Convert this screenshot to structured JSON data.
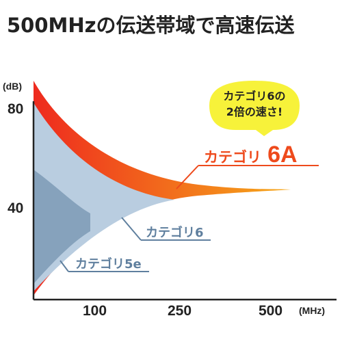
{
  "title": "500MHzの伝送帯域で高速伝送",
  "chart_data": {
    "type": "area",
    "title": "500MHzの伝送帯域で高速伝送",
    "ylabel": "(dB)",
    "xlabel": "(MHz)",
    "x_ticks": [
      "100",
      "250",
      "500"
    ],
    "y_ticks": [
      "80",
      "40"
    ],
    "series": [
      {
        "name": "カテゴリ6A",
        "bandwidth_mhz": 500
      },
      {
        "name": "カテゴリ6",
        "bandwidth_mhz": 250
      },
      {
        "name": "カテゴリ5e",
        "bandwidth_mhz": 100
      }
    ],
    "labels": {
      "cat6a_prefix": "カテゴリ",
      "cat6a_suffix": "6A",
      "cat6": "カテゴリ6",
      "cat5e": "カテゴリ5e"
    },
    "callout": {
      "line1": "カテゴリ6の",
      "line2": "2倍の速さ!"
    },
    "colors": {
      "cat6a_start": "#ee2a1e",
      "cat6a_end": "#f6a91a",
      "cat6": "#b9cde0",
      "cat5e": "#86a2bc",
      "callout": "#f7f23a",
      "label_6a": "#ee4a1c",
      "label_6": "#5f7f9e",
      "axis": "#222222"
    }
  }
}
